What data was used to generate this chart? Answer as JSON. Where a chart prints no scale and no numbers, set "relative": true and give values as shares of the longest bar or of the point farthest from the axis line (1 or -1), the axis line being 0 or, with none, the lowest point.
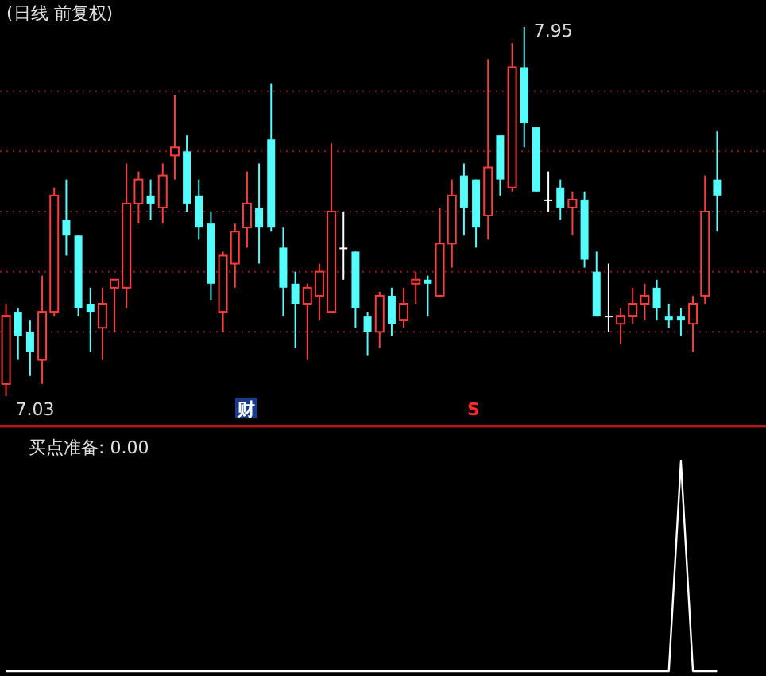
{
  "chart_data": [
    {
      "type": "candlestick",
      "title": "(日线 前复权)",
      "categories": [
        null,
        null,
        null,
        null,
        null,
        null,
        null,
        null,
        null,
        null,
        null,
        null,
        null,
        null,
        null,
        null,
        null,
        null,
        null,
        null,
        null,
        null,
        null,
        null,
        null,
        null,
        null,
        null,
        null,
        null,
        null,
        null,
        null,
        null,
        null,
        null,
        null,
        null,
        null,
        null,
        null,
        null,
        null,
        null,
        null,
        null,
        null,
        null,
        null,
        null,
        null,
        null,
        null,
        null,
        null,
        null,
        null,
        null,
        null,
        null
      ],
      "ohlc": [
        [
          7.06,
          7.26,
          7.03,
          7.23
        ],
        [
          7.24,
          7.25,
          7.12,
          7.18
        ],
        [
          7.19,
          7.22,
          7.08,
          7.14
        ],
        [
          7.12,
          7.33,
          7.06,
          7.24
        ],
        [
          7.24,
          7.55,
          7.23,
          7.53
        ],
        [
          7.47,
          7.57,
          7.38,
          7.43
        ],
        [
          7.43,
          7.43,
          7.23,
          7.25
        ],
        [
          7.26,
          7.3,
          7.14,
          7.24
        ],
        [
          7.2,
          7.3,
          7.12,
          7.26
        ],
        [
          7.3,
          7.32,
          7.19,
          7.32
        ],
        [
          7.3,
          7.61,
          7.25,
          7.51
        ],
        [
          7.51,
          7.59,
          7.46,
          7.57
        ],
        [
          7.53,
          7.57,
          7.47,
          7.51
        ],
        [
          7.5,
          7.61,
          7.46,
          7.58
        ],
        [
          7.63,
          7.78,
          7.57,
          7.65
        ],
        [
          7.64,
          7.68,
          7.49,
          7.51
        ],
        [
          7.53,
          7.57,
          7.42,
          7.45
        ],
        [
          7.46,
          7.49,
          7.27,
          7.31
        ],
        [
          7.24,
          7.39,
          7.19,
          7.38
        ],
        [
          7.36,
          7.46,
          7.3,
          7.44
        ],
        [
          7.45,
          7.59,
          7.4,
          7.51
        ],
        [
          7.5,
          7.61,
          7.36,
          7.45
        ],
        [
          7.67,
          7.81,
          7.44,
          7.45
        ],
        [
          7.4,
          7.45,
          7.23,
          7.3
        ],
        [
          7.31,
          7.34,
          7.15,
          7.26
        ],
        [
          7.26,
          7.31,
          7.12,
          7.3
        ],
        [
          7.28,
          7.36,
          7.22,
          7.34
        ],
        [
          7.24,
          7.66,
          7.24,
          7.49
        ],
        [
          7.4,
          7.49,
          7.32,
          7.4
        ],
        [
          7.39,
          7.39,
          7.2,
          7.25
        ],
        [
          7.23,
          7.24,
          7.13,
          7.19
        ],
        [
          7.19,
          7.29,
          7.15,
          7.28
        ],
        [
          7.28,
          7.3,
          7.18,
          7.21
        ],
        [
          7.22,
          7.3,
          7.2,
          7.26
        ],
        [
          7.31,
          7.34,
          7.26,
          7.32
        ],
        [
          7.32,
          7.33,
          7.23,
          7.31
        ],
        [
          7.28,
          7.5,
          7.28,
          7.41
        ],
        [
          7.41,
          7.57,
          7.35,
          7.53
        ],
        [
          7.58,
          7.61,
          7.43,
          7.5
        ],
        [
          7.57,
          7.57,
          7.4,
          7.45
        ],
        [
          7.48,
          7.87,
          7.42,
          7.6
        ],
        [
          7.68,
          7.68,
          7.53,
          7.57
        ],
        [
          7.55,
          7.91,
          7.54,
          7.85
        ],
        [
          7.85,
          7.95,
          7.65,
          7.71
        ],
        [
          7.7,
          7.7,
          7.54,
          7.54
        ],
        [
          7.52,
          7.59,
          7.49,
          7.52
        ],
        [
          7.55,
          7.57,
          7.47,
          7.5
        ],
        [
          7.5,
          7.54,
          7.43,
          7.52
        ],
        [
          7.52,
          7.54,
          7.35,
          7.37
        ],
        [
          7.34,
          7.39,
          7.23,
          7.23
        ],
        [
          7.23,
          7.36,
          7.19,
          7.23
        ],
        [
          7.21,
          7.25,
          7.16,
          7.23
        ],
        [
          7.23,
          7.3,
          7.21,
          7.26
        ],
        [
          7.26,
          7.31,
          7.22,
          7.28
        ],
        [
          7.3,
          7.32,
          7.22,
          7.25
        ],
        [
          7.23,
          7.26,
          7.2,
          7.22
        ],
        [
          7.23,
          7.25,
          7.18,
          7.22
        ],
        [
          7.21,
          7.28,
          7.14,
          7.26
        ],
        [
          7.28,
          7.58,
          7.26,
          7.49
        ],
        [
          7.57,
          7.69,
          7.44,
          7.53
        ]
      ],
      "colors": [
        "#ff3c3c",
        "#54fcfc",
        "#54fcfc",
        "#ff3c3c",
        "#ff3c3c",
        "#54fcfc",
        "#54fcfc",
        "#54fcfc",
        "#ff3c3c",
        "#ff3c3c",
        "#ff3c3c",
        "#ff3c3c",
        "#54fcfc",
        "#ff3c3c",
        "#ff3c3c",
        "#54fcfc",
        "#54fcfc",
        "#54fcfc",
        "#ff3c3c",
        "#ff3c3c",
        "#ff3c3c",
        "#54fcfc",
        "#54fcfc",
        "#54fcfc",
        "#54fcfc",
        "#ff3c3c",
        "#ff3c3c",
        "#ff3c3c",
        "#ffffff",
        "#54fcfc",
        "#54fcfc",
        "#ff3c3c",
        "#54fcfc",
        "#ff3c3c",
        "#ff3c3c",
        "#54fcfc",
        "#ff3c3c",
        "#ff3c3c",
        "#54fcfc",
        "#54fcfc",
        "#ff3c3c",
        "#54fcfc",
        "#ff3c3c",
        "#54fcfc",
        "#54fcfc",
        "#ffffff",
        "#54fcfc",
        "#ff3c3c",
        "#54fcfc",
        "#54fcfc",
        "#ffffff",
        "#ff3c3c",
        "#ff3c3c",
        "#ff3c3c",
        "#54fcfc",
        "#54fcfc",
        "#54fcfc",
        "#ff3c3c",
        "#ff3c3c",
        "#54fcfc"
      ],
      "yticks": [
        {
          "value": 7.19,
          "label": null
        },
        {
          "value": 7.34,
          "label": null
        },
        {
          "value": 7.49,
          "label": null
        },
        {
          "value": 7.64,
          "label": null
        },
        {
          "value": 7.79,
          "label": null
        }
      ],
      "grid": "y",
      "annotations": [
        "7.95",
        "7.03",
        "财",
        "S"
      ]
    },
    {
      "type": "line",
      "title": "买点准备: 0.00",
      "relative": true,
      "color": "#ffffff",
      "categories": [
        null,
        null,
        null,
        null,
        null,
        null,
        null,
        null,
        null,
        null,
        null,
        null,
        null,
        null,
        null,
        null,
        null,
        null,
        null,
        null,
        null,
        null,
        null,
        null,
        null,
        null,
        null,
        null,
        null,
        null,
        null,
        null,
        null,
        null,
        null,
        null,
        null,
        null,
        null,
        null,
        null,
        null,
        null,
        null,
        null,
        null,
        null,
        null,
        null,
        null,
        null,
        null,
        null,
        null,
        null,
        null,
        null,
        null,
        null,
        null
      ],
      "values": [
        0,
        0,
        0,
        0,
        0,
        0,
        0,
        0,
        0,
        0,
        0,
        0,
        0,
        0,
        0,
        0,
        0,
        0,
        0,
        0,
        0,
        0,
        0,
        0,
        0,
        0,
        0,
        0,
        0,
        0,
        0,
        0,
        0,
        0,
        0,
        0,
        0,
        0,
        0,
        0,
        0,
        0,
        0,
        0,
        0,
        0,
        0,
        0,
        0,
        0,
        0,
        0,
        0,
        0,
        0,
        0,
        1,
        0,
        0,
        0
      ]
    }
  ]
}
